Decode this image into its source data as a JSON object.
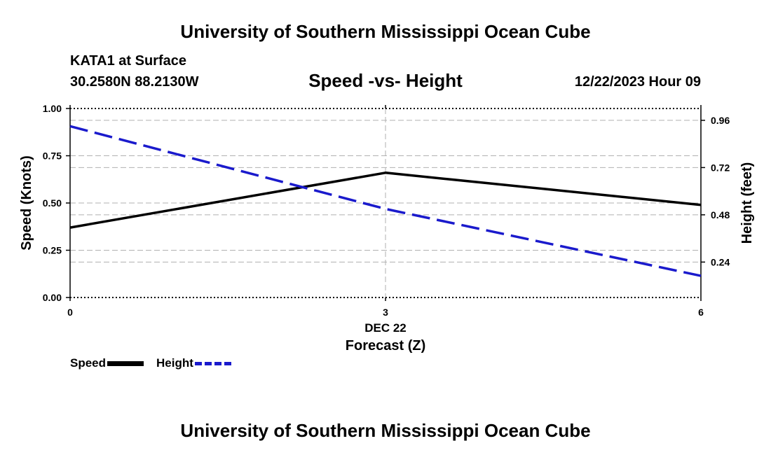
{
  "header": {
    "title": "University of Southern Mississippi Ocean Cube",
    "station": "KATA1 at Surface",
    "coordinates": "30.2580N  88.2130W",
    "chart_title": "Speed -vs- Height",
    "datetime": "12/22/2023 Hour 09"
  },
  "footer": {
    "title": "University of Southern Mississippi Ocean Cube"
  },
  "legend": {
    "speed_label": "Speed",
    "height_label": "Height"
  },
  "colors": {
    "speed": "#000000",
    "height": "#1a1acc",
    "grid": "#b0b0b0"
  },
  "chart_data": {
    "type": "line",
    "title": "Speed -vs- Height",
    "xlabel": "Forecast (Z)",
    "x_date_label": "DEC 22",
    "x": [
      0,
      3,
      6
    ],
    "x_ticks": [
      "0",
      "3",
      "6"
    ],
    "xlim": [
      0,
      6
    ],
    "y_left": {
      "label": "Speed (Knots)",
      "lim": [
        0,
        1
      ],
      "ticks": [
        "0.00",
        "0.25",
        "0.50",
        "0.75",
        "1.00"
      ],
      "tick_values": [
        0,
        0.25,
        0.5,
        0.75,
        1.0
      ]
    },
    "y_right": {
      "label": "Height (feet)",
      "lim": [
        0.06,
        1.02
      ],
      "ticks": [
        "0.24",
        "0.48",
        "0.72",
        "0.96"
      ],
      "tick_values": [
        0.24,
        0.48,
        0.72,
        0.96
      ]
    },
    "series": [
      {
        "name": "Speed",
        "axis": "left",
        "style": "solid",
        "values": [
          0.37,
          0.66,
          0.49
        ]
      },
      {
        "name": "Height",
        "axis": "right",
        "style": "dashed",
        "values": [
          0.93,
          0.51,
          0.17
        ]
      }
    ]
  }
}
